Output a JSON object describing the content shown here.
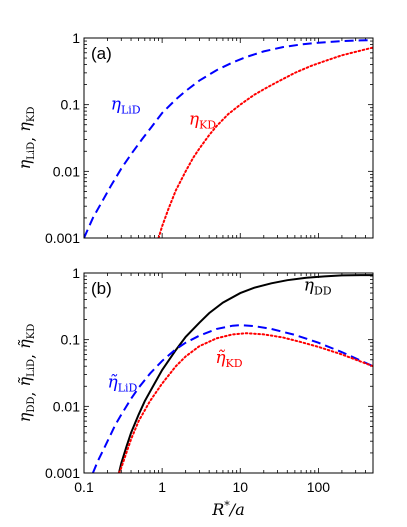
{
  "chart_data": [
    {
      "type": "line",
      "panel_label": "(a)",
      "ylabel": "η_LiD, η_KD",
      "xscale": "log",
      "yscale": "log",
      "xlim": [
        0.1,
        500
      ],
      "ylim": [
        0.001,
        1
      ],
      "yticks": [
        0.001,
        0.01,
        0.1,
        1
      ],
      "ytick_labels": [
        "0.001",
        "0.01",
        "0.1",
        "1"
      ],
      "series": [
        {
          "name": "η_LiD",
          "color": "#0000ff",
          "style": "dashed",
          "x": [
            0.1,
            0.13,
            0.17,
            0.22,
            0.3,
            0.4,
            0.55,
            0.75,
            1.0,
            1.5,
            2.0,
            3.0,
            5.0,
            8.0,
            12,
            20,
            35,
            60,
            100,
            200,
            350,
            500
          ],
          "y": [
            0.001,
            0.002,
            0.0035,
            0.006,
            0.011,
            0.018,
            0.03,
            0.048,
            0.075,
            0.12,
            0.16,
            0.23,
            0.33,
            0.43,
            0.52,
            0.63,
            0.73,
            0.8,
            0.85,
            0.9,
            0.92,
            0.93
          ]
        },
        {
          "name": "η_KD",
          "color": "#ff0000",
          "style": "dotted",
          "x": [
            0.9,
            1.0,
            1.2,
            1.5,
            2.0,
            2.5,
            3.0,
            4.0,
            5.0,
            7.0,
            10,
            15,
            20,
            30,
            50,
            80,
            120,
            200,
            300,
            500
          ],
          "y": [
            0.001,
            0.0015,
            0.0027,
            0.0052,
            0.01,
            0.016,
            0.022,
            0.035,
            0.048,
            0.072,
            0.1,
            0.14,
            0.17,
            0.22,
            0.3,
            0.38,
            0.45,
            0.55,
            0.62,
            0.72
          ]
        }
      ],
      "annotations": [
        {
          "text_base": "η",
          "text_sub": "LiD",
          "color": "#0000ff",
          "x": 0.22,
          "y": 0.085
        },
        {
          "text_base": "η",
          "text_sub": "KD",
          "color": "#ff0000",
          "x": 2.2,
          "y": 0.05
        }
      ]
    },
    {
      "type": "line",
      "panel_label": "(b)",
      "xlabel": "R*/a",
      "ylabel": "η_DD, η̃_LiD, η̃_KD",
      "xscale": "log",
      "yscale": "log",
      "xlim": [
        0.1,
        500
      ],
      "ylim": [
        0.001,
        1
      ],
      "xticks": [
        0.1,
        1,
        10,
        100
      ],
      "xtick_labels": [
        "0.1",
        "1",
        "10",
        "100"
      ],
      "yticks": [
        0.001,
        0.01,
        0.1,
        1
      ],
      "ytick_labels": [
        "0.001",
        "0.01",
        "0.1",
        "1"
      ],
      "series": [
        {
          "name": "η_DD",
          "color": "#000000",
          "style": "solid",
          "x": [
            0.28,
            0.3,
            0.35,
            0.4,
            0.5,
            0.6,
            0.8,
            1.0,
            1.5,
            2.0,
            3.0,
            4.0,
            6.0,
            10,
            15,
            25,
            40,
            70,
            120,
            200,
            350,
            500
          ],
          "y": [
            0.001,
            0.0014,
            0.0025,
            0.004,
            0.0075,
            0.012,
            0.022,
            0.035,
            0.07,
            0.11,
            0.18,
            0.25,
            0.36,
            0.5,
            0.6,
            0.7,
            0.78,
            0.85,
            0.89,
            0.92,
            0.93,
            0.93
          ]
        },
        {
          "name": "η̃_LiD",
          "color": "#0000ff",
          "style": "dashed",
          "x": [
            0.13,
            0.15,
            0.2,
            0.25,
            0.3,
            0.4,
            0.5,
            0.7,
            1.0,
            1.5,
            2.0,
            3.0,
            5.0,
            8.0,
            10,
            15,
            25,
            50,
            100,
            200,
            500
          ],
          "y": [
            0.001,
            0.0015,
            0.003,
            0.0052,
            0.0075,
            0.013,
            0.019,
            0.031,
            0.048,
            0.072,
            0.09,
            0.115,
            0.145,
            0.162,
            0.165,
            0.16,
            0.145,
            0.118,
            0.09,
            0.065,
            0.04
          ]
        },
        {
          "name": "η̃_KD",
          "color": "#ff0000",
          "style": "dotted",
          "x": [
            0.28,
            0.3,
            0.4,
            0.5,
            0.7,
            1.0,
            1.5,
            2.0,
            3.0,
            5.0,
            8.0,
            12,
            20,
            35,
            60,
            100,
            200,
            500
          ],
          "y": [
            0.001,
            0.0012,
            0.0032,
            0.006,
            0.012,
            0.022,
            0.04,
            0.056,
            0.08,
            0.105,
            0.12,
            0.125,
            0.12,
            0.108,
            0.092,
            0.078,
            0.06,
            0.04
          ]
        }
      ],
      "annotations": [
        {
          "text_base": "η",
          "text_sub": "DD",
          "color": "#000000",
          "x": 65,
          "y": 0.55
        },
        {
          "text_base": "η̃",
          "text_sub": "LiD",
          "color": "#0000ff",
          "x": 0.2,
          "y": 0.019
        },
        {
          "text_base": "η̃",
          "text_sub": "KD",
          "color": "#ff0000",
          "x": 4.8,
          "y": 0.045
        }
      ]
    }
  ]
}
